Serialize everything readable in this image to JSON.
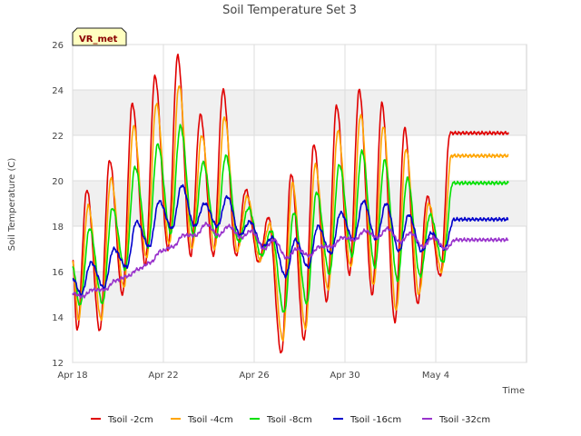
{
  "chart_data": {
    "type": "line",
    "title": "Soil Temperature Set 3",
    "xlabel": "Time",
    "ylabel": "Soil Temperature (C)",
    "badge": "VR_met",
    "ylim": [
      12,
      26
    ],
    "yticks": [
      "12",
      "14",
      "16",
      "18",
      "20",
      "22",
      "24",
      "26"
    ],
    "xlim_days": [
      0,
      20
    ],
    "xticks": [
      {
        "label": "Apr 18",
        "day": 0
      },
      {
        "label": "Apr 22",
        "day": 4
      },
      {
        "label": "Apr 26",
        "day": 8
      },
      {
        "label": "Apr 30",
        "day": 12
      },
      {
        "label": "May 4",
        "day": 16
      }
    ],
    "grid": true,
    "legend_position": "bottom",
    "series": [
      {
        "name": "Tsoil -2cm",
        "color": "#e00000",
        "peaks": [
          19.6,
          20.9,
          23.4,
          24.6,
          25.5,
          22.9,
          24.0,
          19.6,
          18.4,
          20.3,
          21.6,
          23.3,
          24.0,
          23.4,
          22.3,
          19.3,
          22.1
        ],
        "troughs": [
          13.4,
          13.4,
          15.0,
          16.3,
          17.0,
          16.7,
          16.7,
          16.7,
          16.4,
          12.4,
          13.0,
          14.7,
          15.9,
          15.0,
          13.8,
          14.6,
          15.8
        ]
      },
      {
        "name": "Tsoil -4cm",
        "color": "#ffa500",
        "peaks": [
          18.9,
          20.1,
          22.4,
          23.4,
          24.2,
          22.0,
          22.8,
          19.3,
          18.1,
          19.9,
          20.7,
          22.2,
          22.9,
          22.4,
          21.4,
          19.0,
          21.1
        ],
        "troughs": [
          13.9,
          13.9,
          15.3,
          16.6,
          17.2,
          17.0,
          17.0,
          16.9,
          16.5,
          13.0,
          13.5,
          15.2,
          16.2,
          15.4,
          14.3,
          15.0,
          16.0
        ]
      },
      {
        "name": "Tsoil -8cm",
        "color": "#00e000",
        "peaks": [
          17.9,
          18.8,
          20.6,
          21.6,
          22.4,
          20.8,
          21.1,
          18.8,
          17.8,
          18.6,
          19.5,
          20.7,
          21.3,
          20.9,
          20.1,
          18.5,
          19.9
        ],
        "troughs": [
          14.5,
          14.6,
          16.1,
          17.1,
          17.7,
          17.6,
          17.5,
          17.3,
          16.7,
          14.2,
          14.6,
          15.9,
          16.7,
          16.2,
          15.6,
          15.8,
          16.4
        ]
      },
      {
        "name": "Tsoil -16cm",
        "color": "#0000cc",
        "peaks": [
          16.4,
          17.0,
          18.2,
          19.1,
          19.8,
          19.0,
          19.3,
          18.2,
          17.5,
          17.4,
          18.0,
          18.6,
          19.1,
          19.0,
          18.5,
          17.7,
          18.3
        ],
        "troughs": [
          15.0,
          15.3,
          16.2,
          17.1,
          17.9,
          18.0,
          18.0,
          17.6,
          17.1,
          15.8,
          16.2,
          16.8,
          17.4,
          17.4,
          16.9,
          16.9,
          17.0
        ]
      },
      {
        "name": "Tsoil -32cm",
        "color": "#9933cc",
        "peaks": [
          15.2,
          15.6,
          16.1,
          16.9,
          17.6,
          18.1,
          18.0,
          17.8,
          17.4,
          17.0,
          17.1,
          17.5,
          17.8,
          17.9,
          17.7,
          17.5,
          17.4
        ],
        "troughs": [
          14.9,
          15.2,
          15.8,
          16.4,
          17.1,
          17.6,
          17.6,
          17.5,
          17.0,
          16.6,
          16.7,
          17.1,
          17.4,
          17.5,
          17.3,
          17.1,
          17.0
        ]
      }
    ]
  }
}
